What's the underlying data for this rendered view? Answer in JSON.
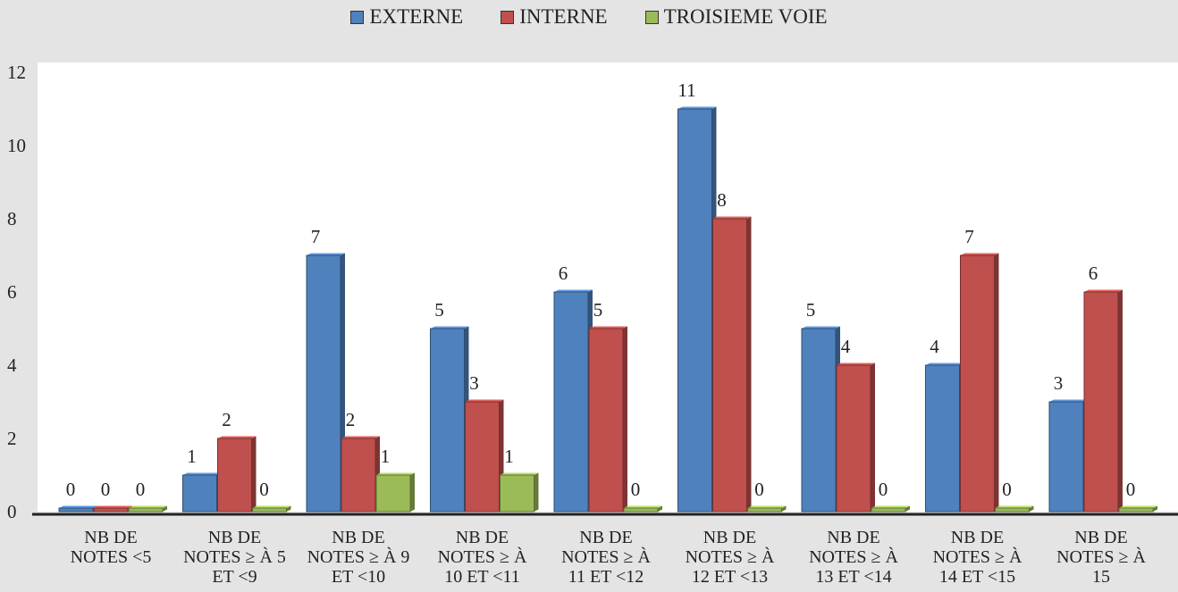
{
  "chart_data": {
    "type": "bar",
    "categories": [
      [
        "NB DE",
        "NOTES <5"
      ],
      [
        "NB DE",
        "NOTES ≥ À 5",
        "ET <9"
      ],
      [
        "NB DE",
        "NOTES ≥ À 9",
        "ET <10"
      ],
      [
        "NB DE",
        "NOTES ≥ À",
        "10 ET <11"
      ],
      [
        "NB DE",
        "NOTES ≥ À",
        "11 ET <12"
      ],
      [
        "NB DE",
        "NOTES ≥ À",
        "12 ET <13"
      ],
      [
        "NB DE",
        "NOTES ≥ À",
        "13 ET <14"
      ],
      [
        "NB DE",
        "NOTES ≥ À",
        "14 ET <15"
      ],
      [
        "NB DE",
        "NOTES ≥ À",
        "15"
      ]
    ],
    "series": [
      {
        "name": "EXTERNE",
        "color": "#4f81bd",
        "values": [
          0,
          1,
          7,
          5,
          6,
          11,
          5,
          4,
          3
        ]
      },
      {
        "name": "INTERNE",
        "color": "#c0504d",
        "values": [
          0,
          2,
          2,
          3,
          5,
          8,
          4,
          7,
          6
        ]
      },
      {
        "name": "TROISIEME VOIE",
        "color": "#9bbb59",
        "values": [
          0,
          0,
          1,
          1,
          0,
          0,
          0,
          0,
          0
        ]
      }
    ],
    "ylim": [
      0,
      12
    ],
    "yticks": [
      0,
      2,
      4,
      6,
      8,
      10,
      12
    ],
    "legend_position": "top-center",
    "grid": false,
    "title": "",
    "xlabel": "",
    "ylabel": ""
  }
}
